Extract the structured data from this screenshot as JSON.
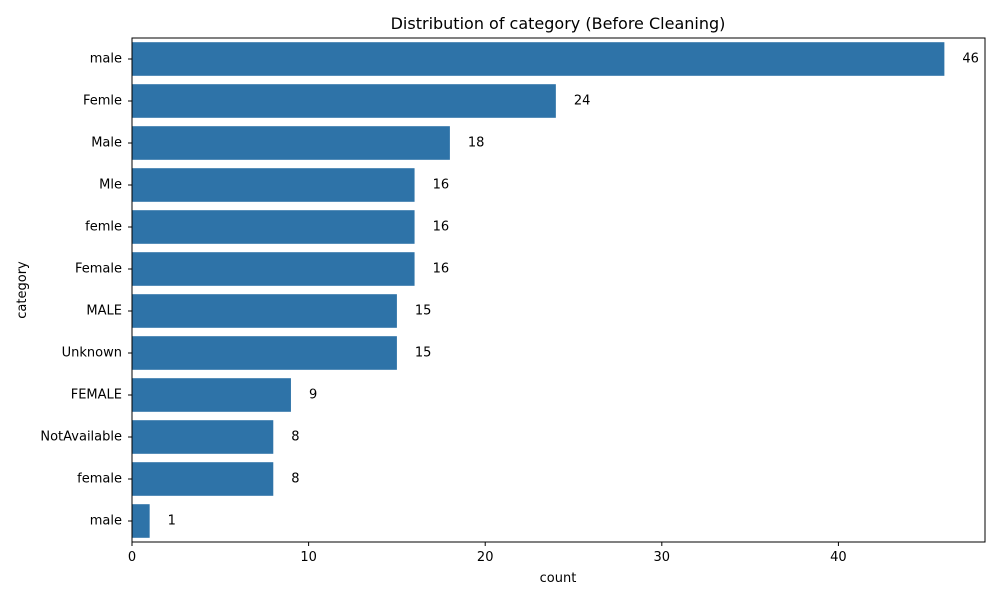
{
  "chart_data": {
    "type": "bar",
    "orientation": "horizontal",
    "title": "Distribution of category (Before Cleaning)",
    "xlabel": "count",
    "ylabel": "category",
    "categories": [
      "male",
      "Femle",
      "Male",
      "Mle",
      "femle",
      "Female",
      "MALE",
      "Unknown",
      "FEMALE",
      "NotAvailable",
      "female",
      "male "
    ],
    "values": [
      46,
      24,
      18,
      16,
      16,
      16,
      15,
      15,
      9,
      8,
      8,
      1
    ],
    "xlim": [
      0,
      48.3
    ],
    "xticks": [
      0,
      10,
      20,
      30,
      40
    ],
    "grid": false,
    "bar_color": "#2e73a8",
    "show_value_labels": true
  }
}
